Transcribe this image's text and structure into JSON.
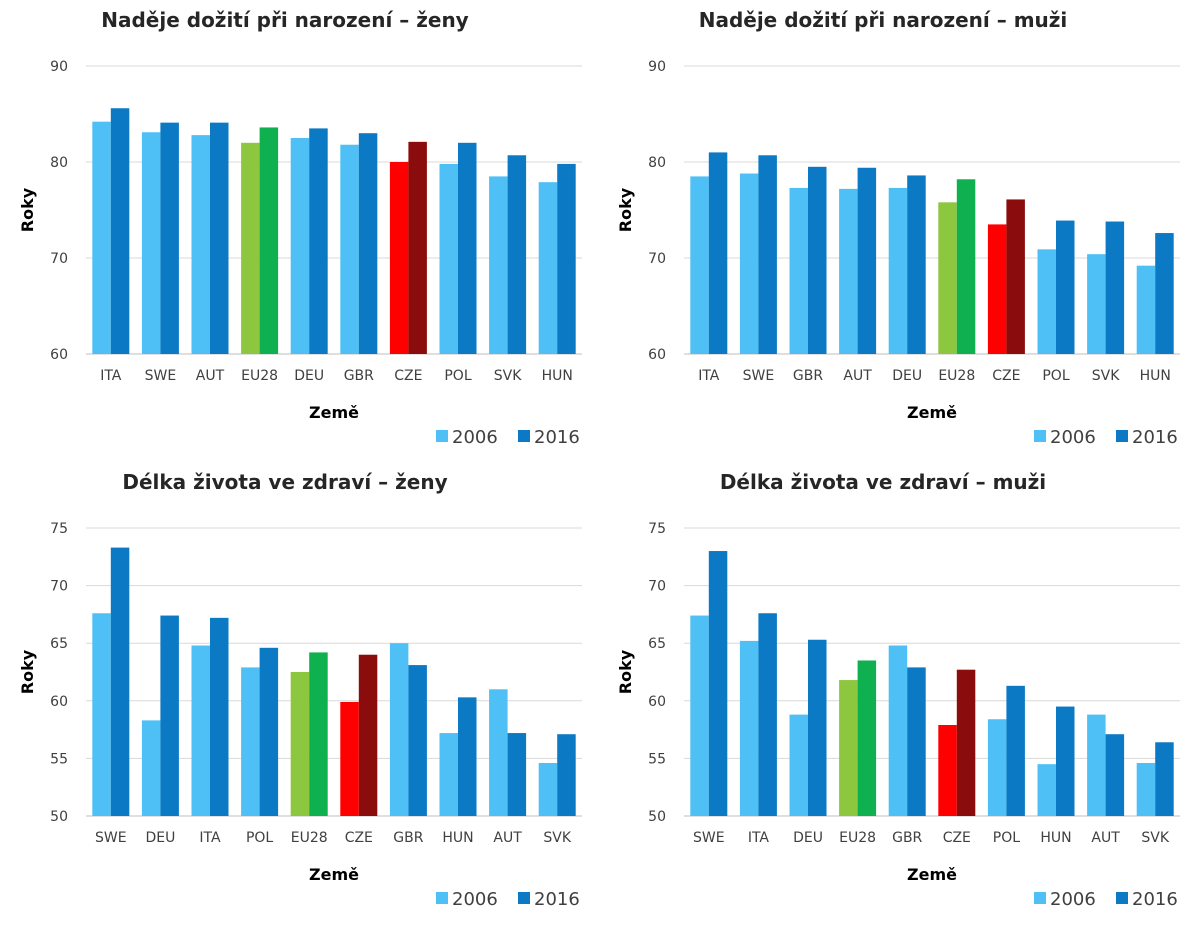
{
  "legend": {
    "labels": [
      "2006",
      "2016"
    ]
  },
  "colors": {
    "y2006": "#4fc0f5",
    "y2016": "#0b79c4",
    "eu2006": "#8dc63f",
    "eu2016": "#0eb04f",
    "cze2006": "#ff0000",
    "cze2016": "#8b0c0c",
    "grid": "#d9d9d9",
    "axis": "#bfbfbf",
    "text": "#404040"
  },
  "chart_data": [
    {
      "type": "bar",
      "title": "Naděje dožití při narození – ženy",
      "xlabel": "Země",
      "ylabel": "Roky",
      "ylim": [
        60,
        90
      ],
      "yticks": [
        60,
        70,
        80,
        90
      ],
      "categories": [
        "ITA",
        "SWE",
        "AUT",
        "EU28",
        "DEU",
        "GBR",
        "CZE",
        "POL",
        "SVK",
        "HUN"
      ],
      "series": [
        {
          "name": "2006",
          "values": [
            84.2,
            83.1,
            82.8,
            82.0,
            82.5,
            81.8,
            80.0,
            79.8,
            78.5,
            77.9
          ]
        },
        {
          "name": "2016",
          "values": [
            85.6,
            84.1,
            84.1,
            83.6,
            83.5,
            83.0,
            82.1,
            82.0,
            80.7,
            79.8
          ]
        }
      ],
      "legend_position": "bottom-right",
      "grid": true
    },
    {
      "type": "bar",
      "title": "Naděje dožití při narození – muži",
      "xlabel": "Země",
      "ylabel": "Roky",
      "ylim": [
        60,
        90
      ],
      "yticks": [
        60,
        70,
        80,
        90
      ],
      "categories": [
        "ITA",
        "SWE",
        "GBR",
        "AUT",
        "DEU",
        "EU28",
        "CZE",
        "POL",
        "SVK",
        "HUN"
      ],
      "series": [
        {
          "name": "2006",
          "values": [
            78.5,
            78.8,
            77.3,
            77.2,
            77.3,
            75.8,
            73.5,
            70.9,
            70.4,
            69.2
          ]
        },
        {
          "name": "2016",
          "values": [
            81.0,
            80.7,
            79.5,
            79.4,
            78.6,
            78.2,
            76.1,
            73.9,
            73.8,
            72.6
          ]
        }
      ],
      "legend_position": "bottom-right",
      "grid": true
    },
    {
      "type": "bar",
      "title": "Délka života ve zdraví – ženy",
      "xlabel": "Země",
      "ylabel": "Roky",
      "ylim": [
        50,
        75
      ],
      "yticks": [
        50,
        55,
        60,
        65,
        70,
        75
      ],
      "categories": [
        "SWE",
        "DEU",
        "ITA",
        "POL",
        "EU28",
        "CZE",
        "GBR",
        "HUN",
        "AUT",
        "SVK"
      ],
      "series": [
        {
          "name": "2006",
          "values": [
            67.6,
            58.3,
            64.8,
            62.9,
            62.5,
            59.9,
            65.0,
            57.2,
            61.0,
            54.6
          ]
        },
        {
          "name": "2016",
          "values": [
            73.3,
            67.4,
            67.2,
            64.6,
            64.2,
            64.0,
            63.1,
            60.3,
            57.2,
            57.1
          ]
        }
      ],
      "legend_position": "bottom-right",
      "grid": true
    },
    {
      "type": "bar",
      "title": "Délka života ve zdraví – muži",
      "xlabel": "Země",
      "ylabel": "Roky",
      "ylim": [
        50,
        75
      ],
      "yticks": [
        50,
        55,
        60,
        65,
        70,
        75
      ],
      "categories": [
        "SWE",
        "ITA",
        "DEU",
        "EU28",
        "GBR",
        "CZE",
        "POL",
        "HUN",
        "AUT",
        "SVK"
      ],
      "series": [
        {
          "name": "2006",
          "values": [
            67.4,
            65.2,
            58.8,
            61.8,
            64.8,
            57.9,
            58.4,
            54.5,
            58.8,
            54.6
          ]
        },
        {
          "name": "2016",
          "values": [
            73.0,
            67.6,
            65.3,
            63.5,
            62.9,
            62.7,
            61.3,
            59.5,
            57.1,
            56.4
          ]
        }
      ],
      "legend_position": "bottom-right",
      "grid": true
    }
  ]
}
